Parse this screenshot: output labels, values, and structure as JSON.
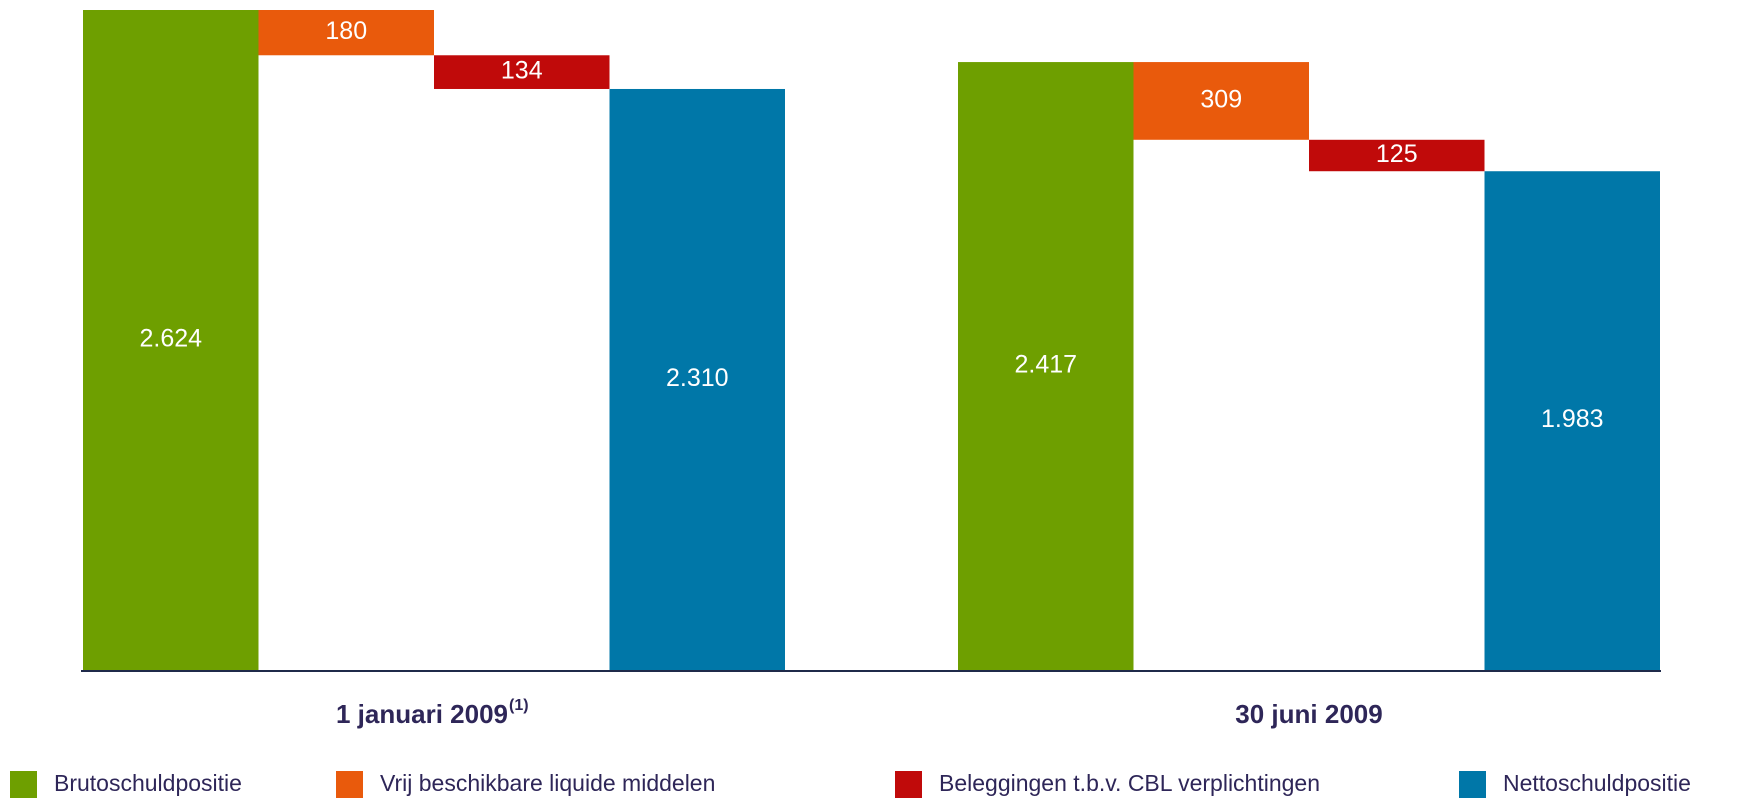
{
  "chart_data": {
    "type": "waterfall",
    "categories": [
      "1 januari 2009",
      "30 juni 2009"
    ],
    "category_superscripts": [
      "(1)",
      null
    ],
    "measure": [
      "total",
      "decrease",
      "decrease",
      "total"
    ],
    "series": [
      {
        "name": "Brutoschuldpositie",
        "color": "#6e9f00",
        "values": [
          2624,
          2417
        ],
        "value_labels": [
          "2.624",
          "2.417"
        ]
      },
      {
        "name": "Vrij beschikbare liquide middelen",
        "color": "#e95a0c",
        "values": [
          180,
          309
        ],
        "value_labels": [
          "180",
          "309"
        ]
      },
      {
        "name": "Beleggingen t.b.v. CBL verplichtingen",
        "color": "#c00a0a",
        "values": [
          134,
          125
        ],
        "value_labels": [
          "134",
          "125"
        ]
      },
      {
        "name": "Nettoschuldpositie",
        "color": "#0077a8",
        "values": [
          2310,
          1983
        ],
        "value_labels": [
          "2.310",
          "1.983"
        ]
      }
    ],
    "ylim": [
      0,
      2624
    ],
    "legend": "bottom"
  }
}
